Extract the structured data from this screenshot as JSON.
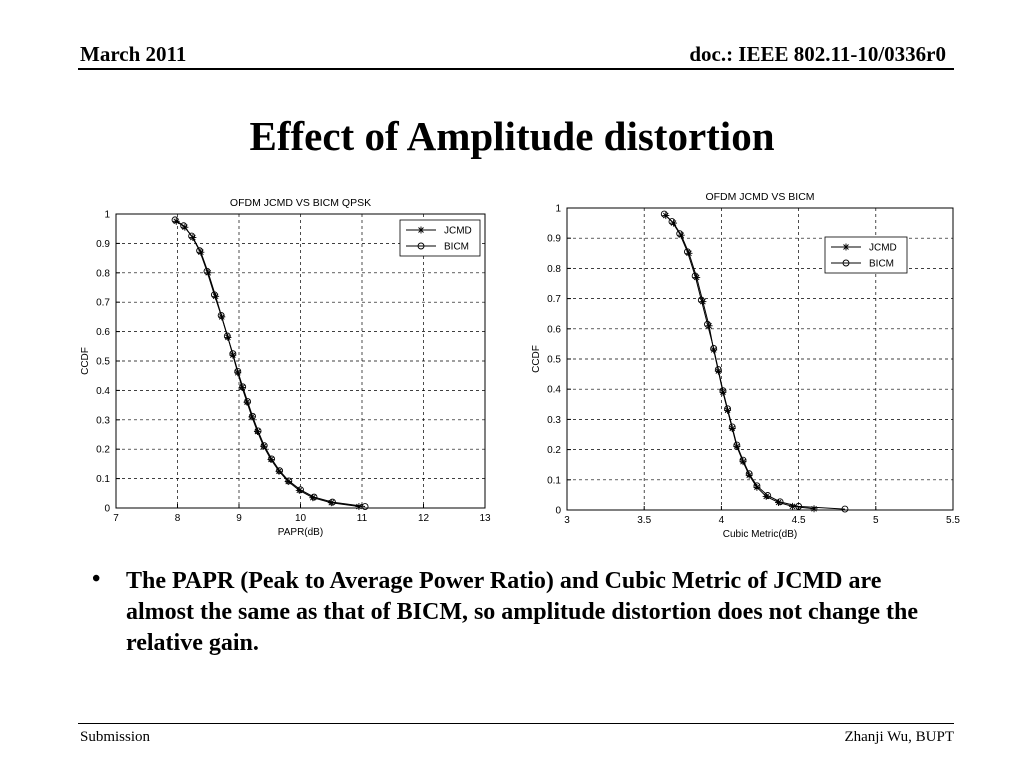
{
  "header": {
    "left": "March 2011",
    "right": "doc.: IEEE 802.11-10/0336r0"
  },
  "title": "Effect of Amplitude distortion",
  "bullet": {
    "marker": "•",
    "text": "The PAPR (Peak to Average Power Ratio) and Cubic Metric of JCMD are almost the same as that of BICM, so amplitude distortion does not change the relative gain."
  },
  "footer": {
    "left": "Submission",
    "right": "Zhanji Wu, BUPT"
  },
  "chart_data": [
    {
      "type": "line",
      "title": "OFDM  JCMD VS BICM  QPSK",
      "xlabel": "PAPR(dB)",
      "ylabel": "CCDF",
      "xlim": [
        7,
        13
      ],
      "ylim": [
        0,
        1
      ],
      "xticks": [
        7,
        8,
        9,
        10,
        11,
        12,
        13
      ],
      "yticks": [
        0,
        0.1,
        0.2,
        0.3,
        0.4,
        0.5,
        0.6,
        0.7,
        0.8,
        0.9,
        1
      ],
      "grid": true,
      "legend_position": "top-right",
      "series": [
        {
          "name": "JCMD",
          "marker": "asterisk",
          "x": [
            7.98,
            8.12,
            8.25,
            8.38,
            8.5,
            8.62,
            8.72,
            8.82,
            8.9,
            8.98,
            9.05,
            9.13,
            9.21,
            9.3,
            9.4,
            9.52,
            9.65,
            9.8,
            9.98,
            10.2,
            10.5,
            10.95
          ],
          "y": [
            0.975,
            0.955,
            0.92,
            0.87,
            0.8,
            0.72,
            0.65,
            0.58,
            0.52,
            0.46,
            0.41,
            0.36,
            0.31,
            0.26,
            0.21,
            0.165,
            0.125,
            0.09,
            0.06,
            0.035,
            0.018,
            0.005
          ]
        },
        {
          "name": "BICM",
          "marker": "circle",
          "x": [
            7.96,
            8.1,
            8.23,
            8.36,
            8.48,
            8.6,
            8.71,
            8.81,
            8.9,
            8.98,
            9.06,
            9.14,
            9.22,
            9.31,
            9.41,
            9.53,
            9.66,
            9.81,
            10.0,
            10.22,
            10.52,
            11.05
          ],
          "y": [
            0.98,
            0.96,
            0.925,
            0.875,
            0.805,
            0.725,
            0.655,
            0.585,
            0.525,
            0.465,
            0.412,
            0.362,
            0.312,
            0.262,
            0.212,
            0.167,
            0.127,
            0.092,
            0.062,
            0.037,
            0.02,
            0.005
          ]
        }
      ]
    },
    {
      "type": "line",
      "title": "OFDM  JCMD VS BICM",
      "xlabel": "Cubic Metric(dB)",
      "ylabel": "CCDF",
      "xlim": [
        3,
        5.5
      ],
      "ylim": [
        0,
        1
      ],
      "xticks": [
        3,
        3.5,
        4,
        4.5,
        5,
        5.5
      ],
      "yticks": [
        0,
        0.1,
        0.2,
        0.3,
        0.4,
        0.5,
        0.6,
        0.7,
        0.8,
        0.9,
        1
      ],
      "grid": true,
      "legend_position": "top-right",
      "series": [
        {
          "name": "JCMD",
          "marker": "asterisk",
          "x": [
            3.64,
            3.69,
            3.74,
            3.79,
            3.84,
            3.88,
            3.92,
            3.95,
            3.98,
            4.01,
            4.04,
            4.07,
            4.1,
            4.14,
            4.18,
            4.23,
            4.29,
            4.37,
            4.46,
            4.6
          ],
          "y": [
            0.975,
            0.95,
            0.91,
            0.85,
            0.77,
            0.69,
            0.61,
            0.53,
            0.46,
            0.39,
            0.33,
            0.27,
            0.21,
            0.16,
            0.115,
            0.075,
            0.045,
            0.025,
            0.012,
            0.004
          ]
        },
        {
          "name": "BICM",
          "marker": "circle",
          "x": [
            3.63,
            3.68,
            3.73,
            3.78,
            3.83,
            3.87,
            3.91,
            3.95,
            3.98,
            4.01,
            4.04,
            4.07,
            4.1,
            4.14,
            4.18,
            4.23,
            4.3,
            4.38,
            4.5,
            4.8
          ],
          "y": [
            0.98,
            0.955,
            0.915,
            0.855,
            0.775,
            0.695,
            0.615,
            0.535,
            0.465,
            0.395,
            0.335,
            0.275,
            0.215,
            0.165,
            0.12,
            0.08,
            0.048,
            0.027,
            0.012,
            0.003
          ]
        }
      ]
    }
  ]
}
